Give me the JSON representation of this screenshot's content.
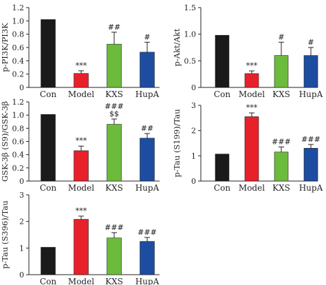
{
  "categories": [
    "Con",
    "Model",
    "KXS",
    "HupA"
  ],
  "colors": {
    "Con": "#1a1a1a",
    "Model": "#e8202a",
    "KXS": "#6cbb3c",
    "HupA": "#1c4da1"
  },
  "chart_data": [
    {
      "type": "bar",
      "ylabel": "p-PI3K/PI3K",
      "categories": [
        "Con",
        "Model",
        "KXS",
        "HupA"
      ],
      "values": [
        1.02,
        0.21,
        0.65,
        0.53
      ],
      "errors": [
        0,
        0.04,
        0.18,
        0.15
      ],
      "annotations": [
        "",
        "***",
        "##",
        "#"
      ],
      "ylim": [
        0,
        1.2
      ],
      "yticks": [
        0,
        0.2,
        0.4,
        0.6,
        0.8,
        1.0,
        1.2
      ],
      "ytick_labels": [
        "0",
        "0.2",
        "0.4",
        "0.6",
        "0.8",
        "1.0",
        "1.2"
      ]
    },
    {
      "type": "bar",
      "ylabel": "p-Akt/Akt",
      "categories": [
        "Con",
        "Model",
        "KXS",
        "HupA"
      ],
      "values": [
        0.98,
        0.26,
        0.6,
        0.6
      ],
      "errors": [
        0,
        0.05,
        0.25,
        0.15
      ],
      "annotations": [
        "",
        "***",
        "#",
        "#"
      ],
      "ylim": [
        0,
        1.5
      ],
      "yticks": [
        0,
        0.5,
        1.0,
        1.5
      ],
      "ytick_labels": [
        "0",
        "0.5",
        "1.0",
        "1.5"
      ]
    },
    {
      "type": "bar",
      "ylabel": "GSK-3β (S9)/GSK-3β",
      "categories": [
        "Con",
        "Model",
        "KXS",
        "HupA"
      ],
      "values": [
        1.01,
        0.46,
        0.86,
        0.65
      ],
      "errors": [
        0,
        0.07,
        0.08,
        0.07
      ],
      "annotations": [
        "",
        "***",
        "###\n$$",
        "##"
      ],
      "ylim": [
        0,
        1.2
      ],
      "yticks": [
        0,
        0.2,
        0.4,
        0.6,
        0.8,
        1.0,
        1.2
      ],
      "ytick_labels": [
        "0",
        "0.2",
        "0.4",
        "0.6",
        "0.8",
        "1.0",
        "1.2"
      ]
    },
    {
      "type": "bar",
      "ylabel": "p-Tau (S199)/Tau",
      "categories": [
        "Con",
        "Model",
        "KXS",
        "HupA"
      ],
      "values": [
        1.07,
        2.55,
        1.15,
        1.3
      ],
      "errors": [
        0,
        0.15,
        0.2,
        0.15
      ],
      "annotations": [
        "",
        "***",
        "###",
        "###"
      ],
      "ylim": [
        0,
        3
      ],
      "yticks": [
        0,
        1,
        2,
        3
      ],
      "ytick_labels": [
        "0",
        "1",
        "2",
        "3"
      ]
    },
    {
      "type": "bar",
      "ylabel": "p-Tau (S396)/Tau",
      "categories": [
        "Con",
        "Model",
        "KXS",
        "HupA"
      ],
      "values": [
        1.03,
        2.08,
        1.38,
        1.25
      ],
      "errors": [
        0,
        0.12,
        0.2,
        0.15
      ],
      "annotations": [
        "",
        "***",
        "###",
        "###"
      ],
      "ylim": [
        0,
        3
      ],
      "yticks": [
        0,
        1,
        2,
        3
      ],
      "ytick_labels": [
        "0",
        "1",
        "2",
        "3"
      ]
    }
  ]
}
